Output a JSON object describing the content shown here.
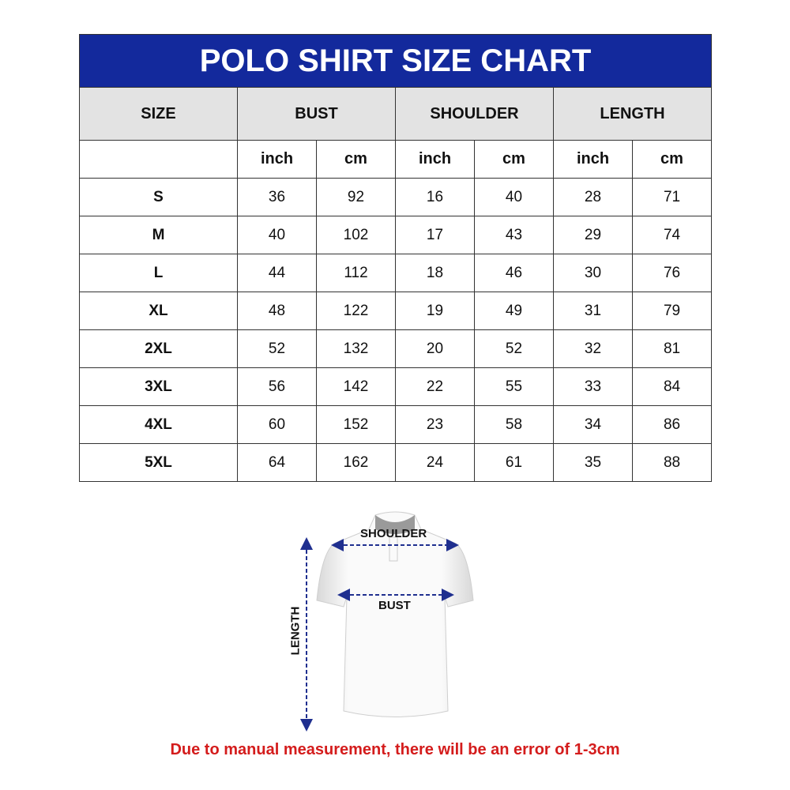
{
  "title": "POLO SHIRT SIZE CHART",
  "columns": [
    "SIZE",
    "BUST",
    "SHOULDER",
    "LENGTH"
  ],
  "units": [
    "inch",
    "cm",
    "inch",
    "cm",
    "inch",
    "cm"
  ],
  "rows": [
    {
      "size": "S",
      "values": [
        "36",
        "92",
        "16",
        "40",
        "28",
        "71"
      ]
    },
    {
      "size": "M",
      "values": [
        "40",
        "102",
        "17",
        "43",
        "29",
        "74"
      ]
    },
    {
      "size": "L",
      "values": [
        "44",
        "112",
        "18",
        "46",
        "30",
        "76"
      ]
    },
    {
      "size": "XL",
      "values": [
        "48",
        "122",
        "19",
        "49",
        "31",
        "79"
      ]
    },
    {
      "size": "2XL",
      "values": [
        "52",
        "132",
        "20",
        "52",
        "32",
        "81"
      ]
    },
    {
      "size": "3XL",
      "values": [
        "56",
        "142",
        "22",
        "55",
        "33",
        "84"
      ]
    },
    {
      "size": "4XL",
      "values": [
        "60",
        "152",
        "23",
        "58",
        "34",
        "86"
      ]
    },
    {
      "size": "5XL",
      "values": [
        "64",
        "162",
        "24",
        "61",
        "35",
        "88"
      ]
    }
  ],
  "figure": {
    "shoulder_label": "SHOULDER",
    "bust_label": "BUST",
    "length_label": "LENGTH"
  },
  "note": "Due to manual measurement, there will be an error of 1-3cm",
  "colors": {
    "header_blue": "#13299c",
    "header_gray": "#e3e3e3",
    "note_red": "#d41c1c",
    "arrow_blue": "#1f2f8f"
  }
}
